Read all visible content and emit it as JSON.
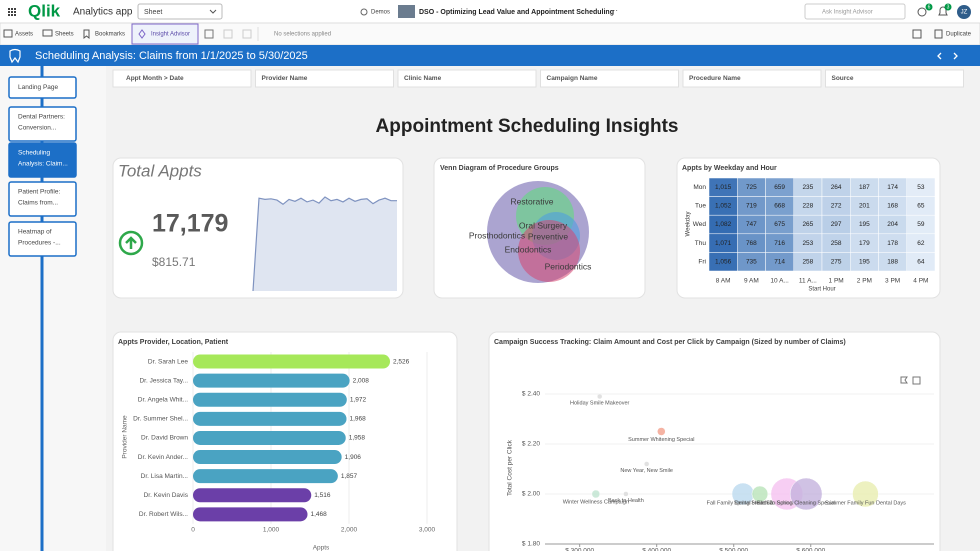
{
  "app": {
    "logo": "Qlik",
    "name": "Analytics app",
    "sheet_dropdown": "Sheet",
    "space": "Demos",
    "app_title": "DSO - Optimizing Lead Value and Appointment Scheduling",
    "more": "···",
    "search": "Ask Insight Advisor",
    "help_badge": "6",
    "alert_badge": "3",
    "user": "JZ"
  },
  "toolbar": {
    "assets": "Assets",
    "sheets": "Sheets",
    "bookmarks": "Bookmarks",
    "insight": "Insight Advisor",
    "selections": "No selections applied",
    "duplicate": "Duplicate"
  },
  "sheet_title": "Scheduling Analysis: Claims from 1/1/2025 to 5/30/2025",
  "nav": [
    [
      "Landing Page"
    ],
    [
      "Dental Partners:",
      "Conversion..."
    ],
    [
      "Scheduling",
      "Analysis: Claim..."
    ],
    [
      "Patient Profile:",
      "Claims from..."
    ],
    [
      "Heatmap of",
      "Procedures -..."
    ]
  ],
  "filters": [
    "Appt Month > Date",
    "Provider Name",
    "Clinic Name",
    "Campaign Name",
    "Procedure Name",
    "Source"
  ],
  "page_heading": "Appointment Scheduling Insights",
  "kpi": {
    "title": "Total Appts",
    "value": "17,179",
    "sub_value": "$815.71"
  },
  "venn": {
    "title": "Venn Diagram of Procedure Groups",
    "sets": [
      "Restorative",
      "Oral Surgery",
      "Preventive",
      "Prosthodontics",
      "Endodontics",
      "Periodontics"
    ]
  },
  "chart_data": [
    {
      "type": "line",
      "color": "#7f93c0",
      "values": [
        0,
        152,
        150,
        151,
        149,
        142,
        150,
        147,
        152,
        146,
        149,
        144,
        154,
        148,
        150,
        146,
        152,
        147,
        150,
        151,
        143,
        149,
        152,
        148,
        148
      ]
    },
    {
      "type": "heatmap",
      "title": "Appts by Weekday and Hour",
      "x_label": "Start Hour",
      "y_label": "Weekday",
      "categories": [
        "8 AM",
        "9 AM",
        "10 A...",
        "11 A...",
        "1 PM",
        "2 PM",
        "3 PM",
        "4 PM"
      ],
      "rows": [
        "Mon",
        "Tue",
        "Wed",
        "Thu",
        "Fri"
      ],
      "values": [
        [
          1015,
          725,
          659,
          235,
          264,
          187,
          174,
          53
        ],
        [
          1052,
          719,
          668,
          228,
          272,
          201,
          168,
          65
        ],
        [
          1082,
          747,
          675,
          265,
          297,
          195,
          204,
          59
        ],
        [
          1071,
          768,
          716,
          253,
          258,
          179,
          178,
          62
        ],
        [
          1056,
          735,
          714,
          258,
          275,
          195,
          188,
          64
        ]
      ],
      "value_labels": [
        [
          "1,015",
          null,
          null,
          null,
          null,
          null,
          null,
          null
        ],
        [
          "1,052",
          null,
          null,
          null,
          null,
          null,
          null,
          null
        ],
        [
          "1,082",
          null,
          null,
          null,
          null,
          null,
          null,
          null
        ],
        [
          "1,071",
          null,
          null,
          null,
          null,
          null,
          null,
          null
        ],
        [
          "1,056",
          null,
          null,
          null,
          null,
          null,
          null,
          null
        ]
      ]
    },
    {
      "type": "bar",
      "orientation": "horizontal",
      "title": "Appts Provider, Location, Patient",
      "x_label": "Appts",
      "y_label": "Provider Name",
      "categories": [
        "Dr. Sarah Lee",
        "Dr. Jessica Tay...",
        "Dr. Angela Whit...",
        "Dr. Summer Shel...",
        "Dr. David Brown",
        "Dr. Kevin Ander...",
        "Dr. Lisa Martin...",
        "Dr. Kevin Davis",
        "Dr. Robert Wils..."
      ],
      "values": [
        2526,
        2008,
        1972,
        1968,
        1958,
        1906,
        1857,
        1516,
        1468
      ],
      "value_labels": [
        "2,526",
        "2,008",
        "1,972",
        "1,968",
        "1,958",
        "1,906",
        "1,857",
        "1,516",
        "1,468"
      ],
      "colors": [
        "#a6e85a",
        "#4aa3c2",
        "#4aa3c2",
        "#4aa3c2",
        "#4aa3c2",
        "#4aa3c2",
        "#4aa3c2",
        "#6b3fa8",
        "#6b3fa8"
      ],
      "xlim": [
        0,
        3200
      ],
      "xticks": [
        0,
        {
          "value": 1000,
          "label": "1,000"
        },
        {
          "value": 2000,
          "label": "2,000"
        },
        {
          "value": 3000,
          "label": "3,000"
        }
      ]
    },
    {
      "type": "scatter",
      "title": "Campaign Success Tracking: Claim Amount and Cost per Click by Campaign (Sized by number of Claims)",
      "y_label": "Total Cost per Click",
      "labels": [
        "Holiday Smile Makeover",
        "Summer Whitening Special",
        "New Year, New Smile",
        "Winter Wellness Campaign",
        "Back to Health",
        "Fall Family Dental Health Day",
        "Spring Smile Savings",
        "Back to School Checkup",
        "Spring Cleaning Special",
        "Summer Family Fun Dental Days"
      ],
      "x": [
        326000,
        406000,
        387000,
        321000,
        360000,
        512000,
        534000,
        569000,
        594000,
        671000
      ],
      "values": [
        2.39,
        2.25,
        2.12,
        2.0,
        2.0,
        2.0,
        2.0,
        2.0,
        2.0,
        2.0
      ],
      "sizes": [
        40,
        160,
        40,
        160,
        40,
        1210,
        640,
        2560,
        2560,
        1690
      ],
      "colors": [
        "#d9d9d9",
        "#f2a08c",
        "#d9d9d9",
        "#bfe3d0",
        "#d9d9d9",
        "#bcd9ef",
        "#b9e4b9",
        "#f5c2f0",
        "#c4b3dd",
        "#e9edb0"
      ],
      "xlim": [
        255000,
        760000
      ],
      "ylim": [
        1.8,
        2.45
      ],
      "xticks": [
        {
          "value": 300000,
          "label": "$ 300,000"
        },
        {
          "value": 400000,
          "label": "$ 400,000"
        },
        {
          "value": 500000,
          "label": "$ 500,000"
        },
        {
          "value": 600000,
          "label": "$ 600,000"
        }
      ],
      "yticks": [
        {
          "value": 1.8,
          "label": "$ 1.80"
        },
        {
          "value": 2.0,
          "label": "$ 2.00"
        },
        {
          "value": 2.2,
          "label": "$ 2.20"
        },
        {
          "value": 2.4,
          "label": "$ 2.40"
        }
      ]
    }
  ]
}
